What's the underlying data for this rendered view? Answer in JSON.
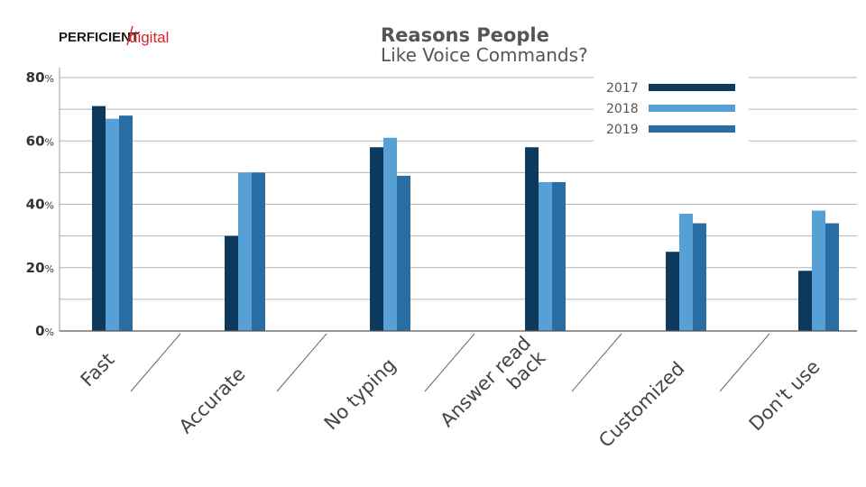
{
  "logo": {
    "main": "PERFICIENT",
    "accent": "digital"
  },
  "chart_data": {
    "type": "bar",
    "title": "Reasons People",
    "subtitle": "Like Voice Commands?",
    "categories": [
      "Fast",
      "Accurate",
      "No typing",
      "Answer read back",
      "Customized",
      "Don't use"
    ],
    "category_lines": [
      [
        "Fast"
      ],
      [
        "Accurate"
      ],
      [
        "No typing"
      ],
      [
        "Answer read",
        "back"
      ],
      [
        "Customized"
      ],
      [
        "Don't use"
      ]
    ],
    "series": [
      {
        "name": "2017",
        "color": "#0d3a5c",
        "values": [
          71,
          30,
          58,
          58,
          25,
          19
        ]
      },
      {
        "name": "2018",
        "color": "#56a0d6",
        "values": [
          67,
          50,
          61,
          47,
          37,
          38
        ]
      },
      {
        "name": "2019",
        "color": "#2a6da3",
        "values": [
          68,
          50,
          49,
          47,
          34,
          34
        ]
      }
    ],
    "yticks": [
      {
        "value": 0,
        "num": "0",
        "unit": "%"
      },
      {
        "value": 20,
        "num": "20",
        "unit": "%"
      },
      {
        "value": 40,
        "num": "40",
        "unit": "%"
      },
      {
        "value": 60,
        "num": "60",
        "unit": "%"
      },
      {
        "value": 80,
        "num": "80",
        "unit": "%"
      }
    ],
    "ylim": [
      0,
      80
    ],
    "grid": true,
    "legend_position": "top-right"
  }
}
